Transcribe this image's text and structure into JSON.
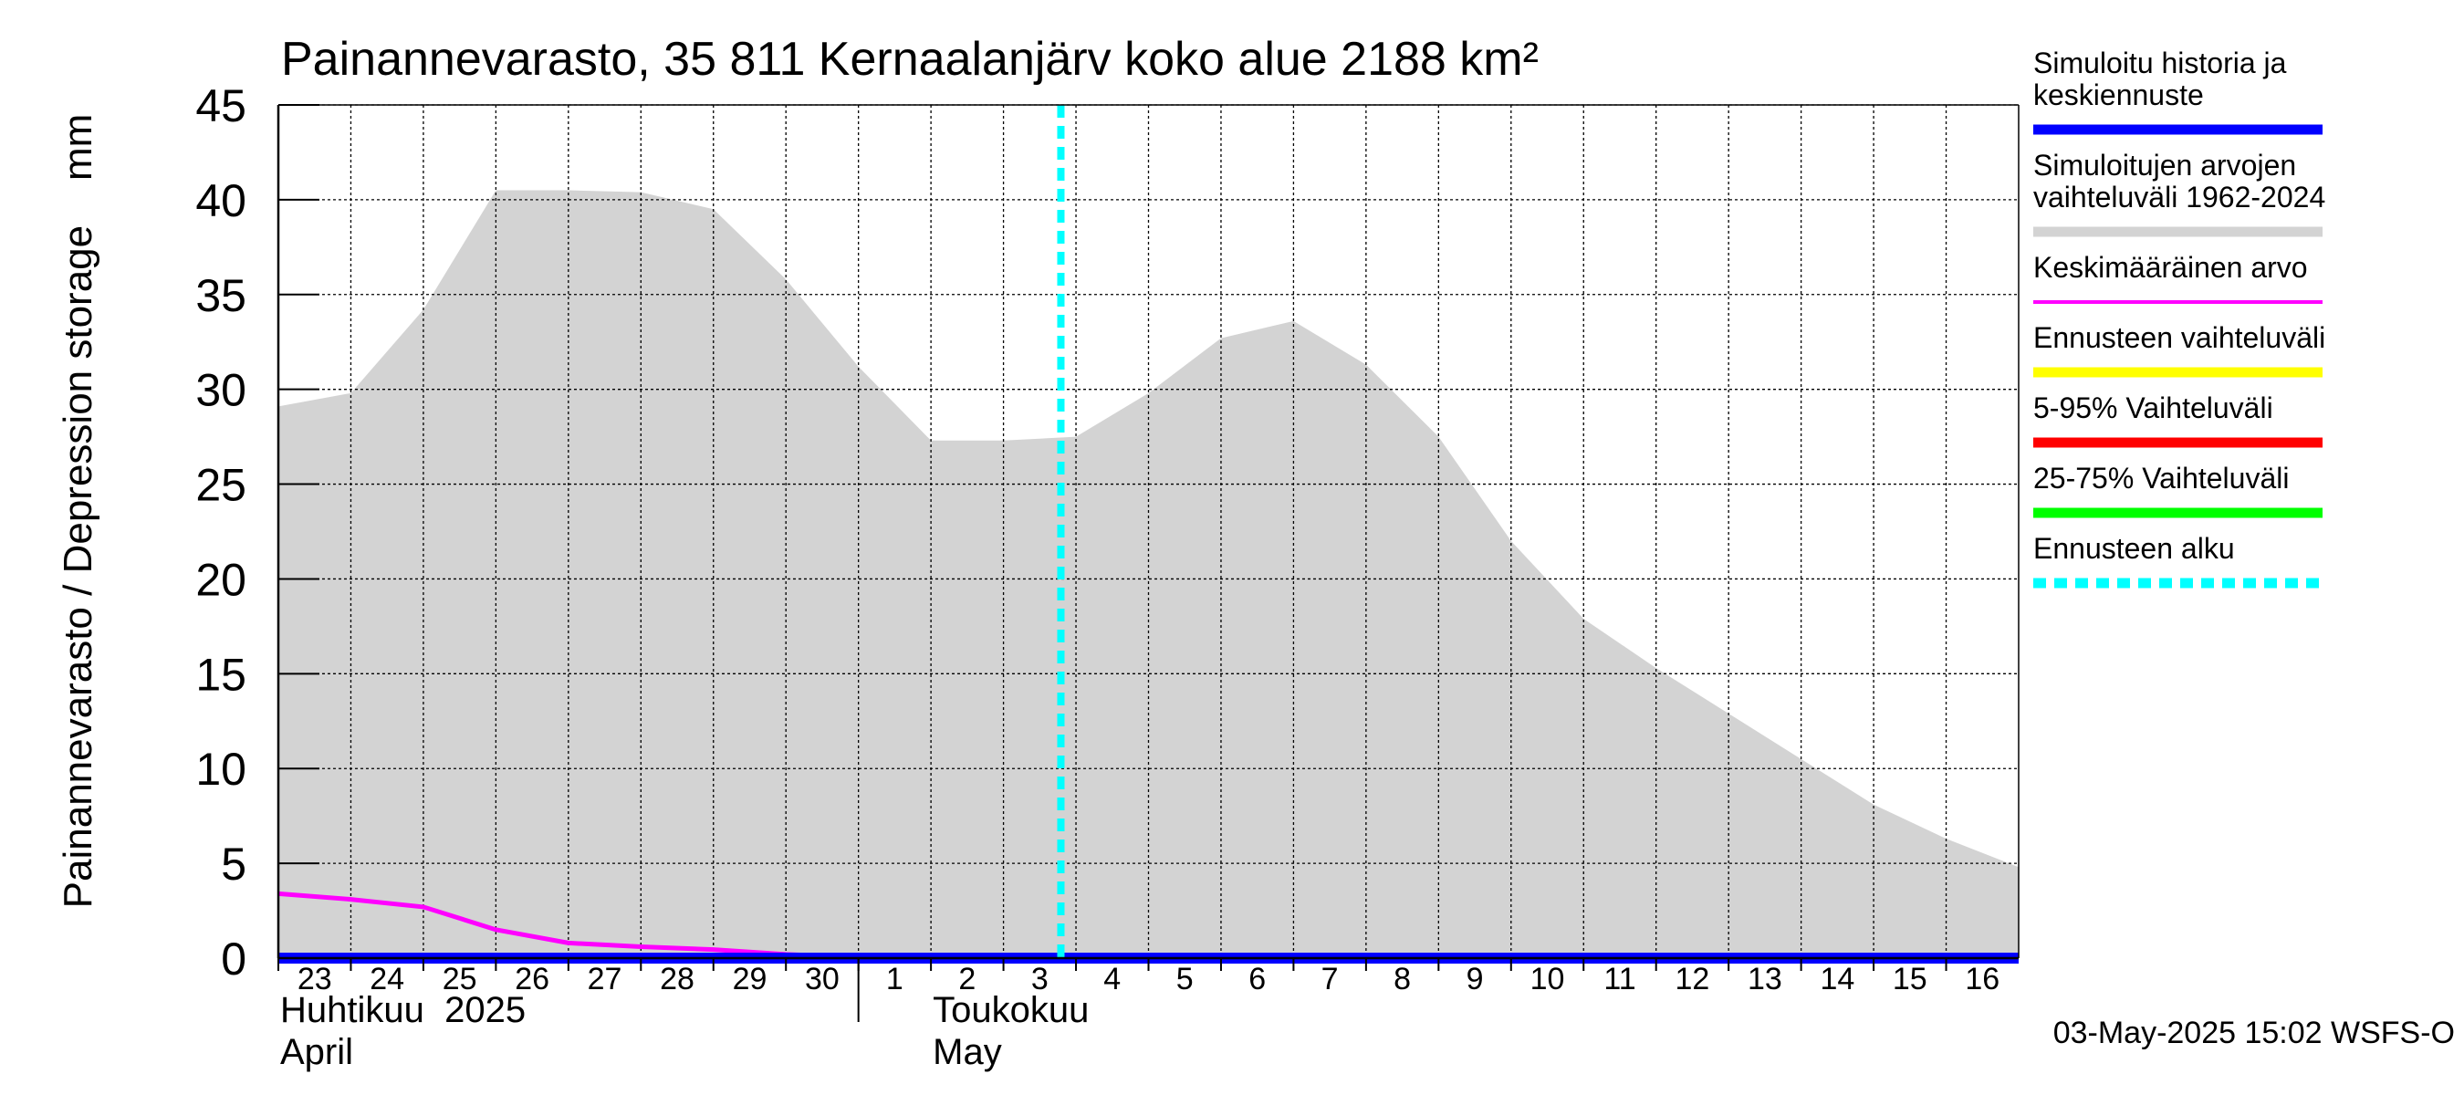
{
  "chart_data": {
    "type": "area",
    "title": "Painannevarasto, 35 811 Kernaalanjärv koko alue 2188 km²",
    "ylabel": "Painannevarasto / Depression storage    mm",
    "ylim": [
      0,
      45
    ],
    "yticks": [
      0,
      5,
      10,
      15,
      20,
      25,
      30,
      35,
      40,
      45
    ],
    "x_start": "2025-04-23",
    "x_end": "2025-05-17",
    "x_ticks": [
      {
        "date": "2025-04-23",
        "label": "23"
      },
      {
        "date": "2025-04-24",
        "label": "24"
      },
      {
        "date": "2025-04-25",
        "label": "25"
      },
      {
        "date": "2025-04-26",
        "label": "26"
      },
      {
        "date": "2025-04-27",
        "label": "27"
      },
      {
        "date": "2025-04-28",
        "label": "28"
      },
      {
        "date": "2025-04-29",
        "label": "29"
      },
      {
        "date": "2025-04-30",
        "label": "30"
      },
      {
        "date": "2025-05-01",
        "label": "1"
      },
      {
        "date": "2025-05-02",
        "label": "2"
      },
      {
        "date": "2025-05-03",
        "label": "3"
      },
      {
        "date": "2025-05-04",
        "label": "4"
      },
      {
        "date": "2025-05-05",
        "label": "5"
      },
      {
        "date": "2025-05-06",
        "label": "6"
      },
      {
        "date": "2025-05-07",
        "label": "7"
      },
      {
        "date": "2025-05-08",
        "label": "8"
      },
      {
        "date": "2025-05-09",
        "label": "9"
      },
      {
        "date": "2025-05-10",
        "label": "10"
      },
      {
        "date": "2025-05-11",
        "label": "11"
      },
      {
        "date": "2025-05-12",
        "label": "12"
      },
      {
        "date": "2025-05-13",
        "label": "13"
      },
      {
        "date": "2025-05-14",
        "label": "14"
      },
      {
        "date": "2025-05-15",
        "label": "15"
      },
      {
        "date": "2025-05-16",
        "label": "16"
      }
    ],
    "month_labels": [
      {
        "date": "2025-04-23",
        "line1": "Huhtikuu  2025",
        "line2": "April"
      },
      {
        "date": "2025-05-02",
        "line1": "Toukokuu",
        "line2": "May"
      }
    ],
    "month_divider_date": "2025-05-01",
    "grid": true,
    "legend_position": "right",
    "range_band": {
      "name": "Simuloitujen arvojen vaihteluväli 1962-2024",
      "color": "#d3d3d3",
      "x": [
        "2025-04-23",
        "2025-04-24",
        "2025-04-25",
        "2025-04-26",
        "2025-04-27",
        "2025-04-28",
        "2025-04-29",
        "2025-04-30",
        "2025-05-01",
        "2025-05-02",
        "2025-05-03",
        "2025-05-04",
        "2025-05-05",
        "2025-05-06",
        "2025-05-07",
        "2025-05-08",
        "2025-05-09",
        "2025-05-10",
        "2025-05-11",
        "2025-05-12",
        "2025-05-13",
        "2025-05-14",
        "2025-05-15",
        "2025-05-16",
        "2025-05-17"
      ],
      "upper": [
        29.1,
        29.8,
        34.2,
        40.5,
        40.5,
        40.4,
        39.5,
        35.8,
        31.2,
        27.3,
        27.3,
        27.5,
        29.8,
        32.7,
        33.6,
        31.3,
        27.5,
        22.0,
        17.9,
        15.3,
        12.9,
        10.5,
        8.1,
        6.3,
        4.8
      ],
      "lower": [
        0,
        0,
        0,
        0,
        0,
        0,
        0,
        0,
        0,
        0,
        0,
        0,
        0,
        0,
        0,
        0,
        0,
        0,
        0,
        0,
        0,
        0,
        0,
        0,
        0
      ]
    },
    "series": [
      {
        "name": "Keskimääräinen arvo",
        "color": "#ff00ff",
        "x": [
          "2025-04-23",
          "2025-04-24",
          "2025-04-25",
          "2025-04-26",
          "2025-04-27",
          "2025-04-28",
          "2025-04-29",
          "2025-04-30",
          "2025-05-01",
          "2025-05-02",
          "2025-05-03",
          "2025-05-04",
          "2025-05-05",
          "2025-05-06",
          "2025-05-07",
          "2025-05-08",
          "2025-05-09",
          "2025-05-10",
          "2025-05-11",
          "2025-05-12",
          "2025-05-13",
          "2025-05-14",
          "2025-05-15",
          "2025-05-16",
          "2025-05-17"
        ],
        "y": [
          3.4,
          3.1,
          2.7,
          1.5,
          0.8,
          0.6,
          0.45,
          0.2,
          0.05,
          0.0,
          0.0,
          0.0,
          0.0,
          0.0,
          0.0,
          0.0,
          0.0,
          0.0,
          0.0,
          0.0,
          0.0,
          0.0,
          0.0,
          0.0,
          0.0
        ]
      },
      {
        "name": "Simuloitu historia ja keskiennuste",
        "color": "#0000ff",
        "x": [
          "2025-04-23",
          "2025-05-17"
        ],
        "y": [
          0,
          0
        ]
      }
    ],
    "forecast_start": {
      "name": "Ennusteen alku",
      "date": "2025-05-03T19:00",
      "color": "#00ffff"
    },
    "legend": [
      {
        "label": "Simuloitu historia ja keskiennuste",
        "color": "#0000ff",
        "style": "solid-thick"
      },
      {
        "label": "Simuloitujen arvojen vaihteluväli 1962-2024",
        "color": "#d3d3d3",
        "style": "solid-thick"
      },
      {
        "label": "Keskimääräinen arvo",
        "color": "#ff00ff",
        "style": "solid-thin"
      },
      {
        "label": "Ennusteen vaihteluväli",
        "color": "#ffff00",
        "style": "solid-thick"
      },
      {
        "label": "5-95% Vaihteluväli",
        "color": "#ff0000",
        "style": "solid-thick"
      },
      {
        "label": "25-75% Vaihteluväli",
        "color": "#00ff00",
        "style": "solid-thick"
      },
      {
        "label": "Ennusteen alku",
        "color": "#00ffff",
        "style": "dashed"
      }
    ],
    "footer": "03-May-2025 15:02 WSFS-O"
  }
}
